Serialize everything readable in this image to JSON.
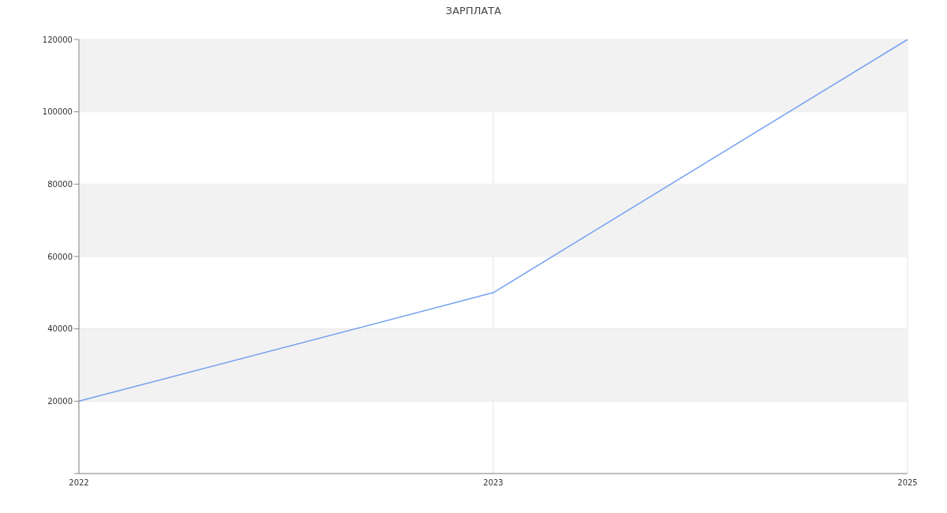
{
  "chart_data": {
    "type": "line",
    "title": "ЗАРПЛАТА",
    "categories": [
      "2022",
      "2023",
      "2025"
    ],
    "series": [
      {
        "color": "#74a0f0",
        "values": [
          20000,
          50000,
          120000
        ]
      }
    ],
    "ylim": [
      0,
      120000
    ],
    "yticks": [
      {
        "value": 0,
        "label": null
      },
      20000,
      40000,
      60000,
      80000,
      100000,
      120000
    ],
    "grid": true,
    "marker": "none",
    "line_style": "solid",
    "bands": [
      {
        "axis": "y",
        "from": 20000,
        "to": 40000,
        "color": "#f2f2f2"
      },
      {
        "axis": "y",
        "from": 60000,
        "to": 80000,
        "color": "#f2f2f2"
      },
      {
        "axis": "y",
        "from": 100000,
        "to": 120000,
        "color": "#f2f2f2"
      }
    ]
  }
}
